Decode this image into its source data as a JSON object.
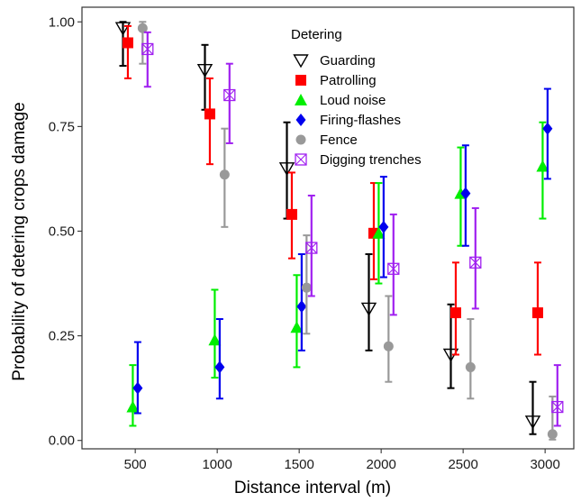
{
  "chart_data": {
    "type": "scatter",
    "xlabel": "Distance interval (m)",
    "ylabel": "Probability of detering crops damage",
    "x_ticks": [
      500,
      1000,
      1500,
      2000,
      2500,
      3000
    ],
    "x_tick_labels": [
      "500",
      "1000",
      "1500",
      "2000",
      "2500",
      "3000"
    ],
    "y_ticks": [
      0,
      0.25,
      0.5,
      0.75,
      1.0
    ],
    "y_tick_labels": [
      "0.00",
      "0.25",
      "0.50",
      "0.75",
      "1.00"
    ],
    "xlim": [
      175,
      3175
    ],
    "ylim": [
      -0.02,
      1.035
    ],
    "grid": false,
    "legend_title": "Detering",
    "legend_position": "top-right-inside",
    "series": [
      {
        "name": "Guarding",
        "color": "#000000",
        "marker": "triangle-down-open",
        "offset": -75,
        "points": [
          {
            "x": 500,
            "y": 0.985,
            "low": 0.895,
            "high": 1.0
          },
          {
            "x": 1000,
            "y": 0.885,
            "low": 0.79,
            "high": 0.945
          },
          {
            "x": 1500,
            "y": 0.65,
            "low": 0.53,
            "high": 0.76
          },
          {
            "x": 2000,
            "y": 0.315,
            "low": 0.215,
            "high": 0.445
          },
          {
            "x": 2500,
            "y": 0.205,
            "low": 0.125,
            "high": 0.325
          },
          {
            "x": 3000,
            "y": 0.045,
            "low": 0.015,
            "high": 0.14
          }
        ]
      },
      {
        "name": "Patrolling",
        "color": "#ff0000",
        "marker": "square",
        "offset": -45,
        "points": [
          {
            "x": 500,
            "y": 0.95,
            "low": 0.865,
            "high": 0.99
          },
          {
            "x": 1000,
            "y": 0.78,
            "low": 0.66,
            "high": 0.865
          },
          {
            "x": 1500,
            "y": 0.54,
            "low": 0.435,
            "high": 0.64
          },
          {
            "x": 2000,
            "y": 0.495,
            "low": 0.385,
            "high": 0.615
          },
          {
            "x": 2500,
            "y": 0.305,
            "low": 0.205,
            "high": 0.425
          },
          {
            "x": 3000,
            "y": 0.305,
            "low": 0.205,
            "high": 0.425
          }
        ]
      },
      {
        "name": "Loud noise",
        "color": "#00ee00",
        "marker": "triangle-up",
        "offset": -15,
        "points": [
          {
            "x": 500,
            "y": 0.08,
            "low": 0.035,
            "high": 0.18
          },
          {
            "x": 1000,
            "y": 0.24,
            "low": 0.15,
            "high": 0.36
          },
          {
            "x": 1500,
            "y": 0.27,
            "low": 0.175,
            "high": 0.395
          },
          {
            "x": 2000,
            "y": 0.495,
            "low": 0.375,
            "high": 0.615
          },
          {
            "x": 2500,
            "y": 0.59,
            "low": 0.465,
            "high": 0.7
          },
          {
            "x": 3000,
            "y": 0.655,
            "low": 0.53,
            "high": 0.76
          }
        ]
      },
      {
        "name": "Firing-flashes",
        "color": "#0000ee",
        "marker": "diamond",
        "offset": 15,
        "points": [
          {
            "x": 500,
            "y": 0.125,
            "low": 0.065,
            "high": 0.235
          },
          {
            "x": 1000,
            "y": 0.175,
            "low": 0.1,
            "high": 0.29
          },
          {
            "x": 1500,
            "y": 0.32,
            "low": 0.215,
            "high": 0.445
          },
          {
            "x": 2000,
            "y": 0.51,
            "low": 0.39,
            "high": 0.63
          },
          {
            "x": 2500,
            "y": 0.59,
            "low": 0.465,
            "high": 0.705
          },
          {
            "x": 3000,
            "y": 0.745,
            "low": 0.625,
            "high": 0.84
          }
        ]
      },
      {
        "name": "Fence",
        "color": "#999999",
        "marker": "circle",
        "offset": 45,
        "points": [
          {
            "x": 500,
            "y": 0.985,
            "low": 0.9,
            "high": 1.0
          },
          {
            "x": 1000,
            "y": 0.635,
            "low": 0.51,
            "high": 0.745
          },
          {
            "x": 1500,
            "y": 0.365,
            "low": 0.255,
            "high": 0.49
          },
          {
            "x": 2000,
            "y": 0.225,
            "low": 0.14,
            "high": 0.345
          },
          {
            "x": 2500,
            "y": 0.175,
            "low": 0.1,
            "high": 0.29
          },
          {
            "x": 3000,
            "y": 0.015,
            "low": 0.002,
            "high": 0.105
          }
        ]
      },
      {
        "name": "Digging trenches",
        "color": "#a020f0",
        "marker": "square-x-open",
        "offset": 75,
        "points": [
          {
            "x": 500,
            "y": 0.935,
            "low": 0.845,
            "high": 0.975
          },
          {
            "x": 1000,
            "y": 0.825,
            "low": 0.71,
            "high": 0.9
          },
          {
            "x": 1500,
            "y": 0.46,
            "low": 0.345,
            "high": 0.585
          },
          {
            "x": 2000,
            "y": 0.41,
            "low": 0.3,
            "high": 0.54
          },
          {
            "x": 2500,
            "y": 0.425,
            "low": 0.315,
            "high": 0.555
          },
          {
            "x": 3000,
            "y": 0.08,
            "low": 0.035,
            "high": 0.18
          }
        ]
      }
    ]
  }
}
